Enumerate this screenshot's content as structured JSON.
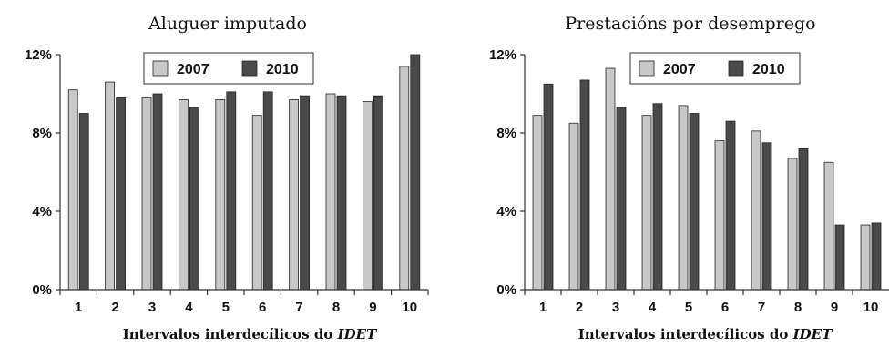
{
  "chart_data": [
    {
      "type": "bar",
      "title": "Aluguer imputado",
      "xlabel_prefix": "Intervalos interdecílicos do ",
      "xlabel_emph": "IDET",
      "ylabel": "",
      "categories": [
        "1",
        "2",
        "3",
        "4",
        "5",
        "6",
        "7",
        "8",
        "9",
        "10"
      ],
      "yticks": [
        "0%",
        "4%",
        "8%",
        "12%"
      ],
      "ylim": [
        0,
        12
      ],
      "grid": false,
      "legend": "top-right",
      "series": [
        {
          "name": "2007",
          "color": "#c8c8c8",
          "values": [
            10.2,
            10.6,
            9.8,
            9.7,
            9.7,
            8.9,
            9.7,
            10.0,
            9.6,
            11.4
          ]
        },
        {
          "name": "2010",
          "color": "#4a4a4a",
          "values": [
            9.0,
            9.8,
            10.0,
            9.3,
            10.1,
            10.1,
            9.9,
            9.9,
            9.9,
            12.0
          ]
        }
      ]
    },
    {
      "type": "bar",
      "title": "Prestacións por desemprego",
      "xlabel_prefix": "Intervalos interdecílicos do ",
      "xlabel_emph": "IDET",
      "ylabel": "",
      "categories": [
        "1",
        "2",
        "3",
        "4",
        "5",
        "6",
        "7",
        "8",
        "9",
        "10"
      ],
      "yticks": [
        "0%",
        "4%",
        "8%",
        "12%"
      ],
      "ylim": [
        0,
        12
      ],
      "grid": false,
      "legend": "top-right",
      "series": [
        {
          "name": "2007",
          "color": "#c8c8c8",
          "values": [
            8.9,
            8.5,
            11.3,
            8.9,
            9.4,
            7.6,
            8.1,
            6.7,
            6.5,
            3.3
          ]
        },
        {
          "name": "2010",
          "color": "#4a4a4a",
          "values": [
            10.5,
            10.7,
            9.3,
            9.5,
            9.0,
            8.6,
            7.5,
            7.2,
            3.3,
            3.4
          ]
        }
      ]
    }
  ]
}
